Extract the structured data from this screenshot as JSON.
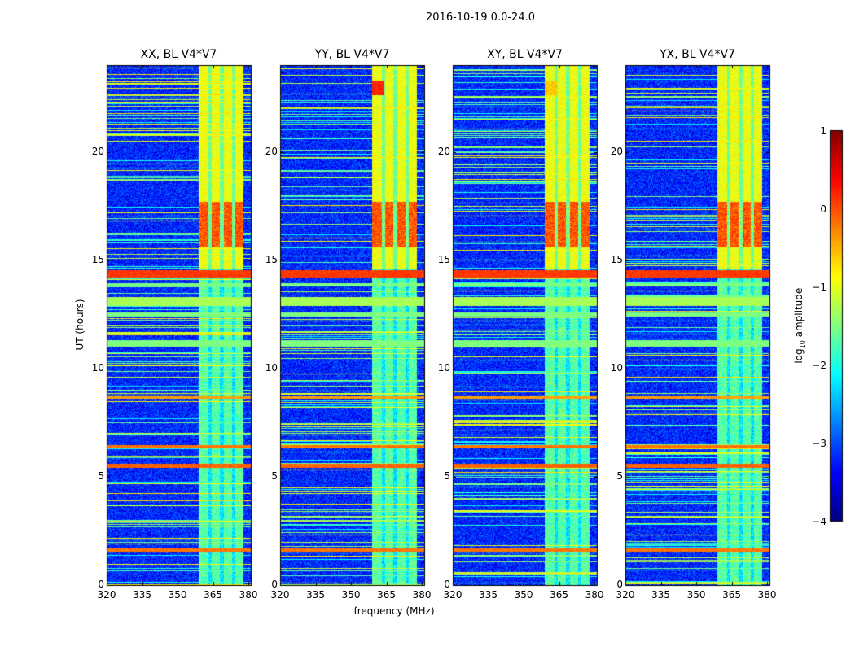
{
  "figure": {
    "suptitle": "2016-10-19 0.0-24.0",
    "xlabel": "frequency (MHz)",
    "ylabel": "UT (hours)",
    "colorbar_label": "log",
    "colorbar_label_sub": "10",
    "colorbar_label_rest": " amplitude"
  },
  "chart_data": {
    "type": "heatmap",
    "title": "2016-10-19 0.0-24.0",
    "xlabel": "frequency (MHz)",
    "ylabel": "UT (hours)",
    "xlim": [
      320,
      381
    ],
    "ylim": [
      0,
      24
    ],
    "xticks": [
      320,
      335,
      350,
      365,
      380
    ],
    "yticks": [
      0,
      5,
      10,
      15,
      20
    ],
    "panels": [
      {
        "title": "XX, BL V4*V7",
        "pol": "XX"
      },
      {
        "title": "YY, BL V4*V7",
        "pol": "YY"
      },
      {
        "title": "XY, BL V4*V7",
        "pol": "XY"
      },
      {
        "title": "YX, BL V4*V7",
        "pol": "YX"
      }
    ],
    "colorbar": {
      "label": "log10 amplitude",
      "range": [
        -4,
        1
      ],
      "ticks": [
        -4,
        -3,
        -2,
        -1,
        0,
        1
      ],
      "colormap": "jet"
    },
    "background_log_amplitude": -3.2,
    "rfi_band_mhz": [
      359,
      378
    ],
    "rfi_strong_subbands_mhz": [
      [
        359,
        363
      ],
      [
        364.5,
        368
      ],
      [
        369.5,
        373
      ],
      [
        374.5,
        378
      ]
    ],
    "rfi_broadband_ut_hours": [
      {
        "t0": 14.15,
        "t1": 14.55,
        "level": 0.1
      },
      {
        "t0": 11.0,
        "t1": 11.3,
        "level": -1.5
      },
      {
        "t0": 12.4,
        "t1": 12.6,
        "level": -1.5
      },
      {
        "t0": 12.9,
        "t1": 13.3,
        "level": -1.3
      },
      {
        "t0": 13.8,
        "t1": 13.95,
        "level": -1.5
      },
      {
        "t0": 5.4,
        "t1": 5.6,
        "level": -0.1
      },
      {
        "t0": 6.3,
        "t1": 6.45,
        "level": -0.2
      },
      {
        "t0": 1.55,
        "t1": 1.7,
        "level": -0.2
      },
      {
        "t0": 8.6,
        "t1": 8.7,
        "level": -0.4
      }
    ],
    "rfi_enhanced_ut_hours": [
      [
        15.6,
        17.7
      ]
    ]
  }
}
